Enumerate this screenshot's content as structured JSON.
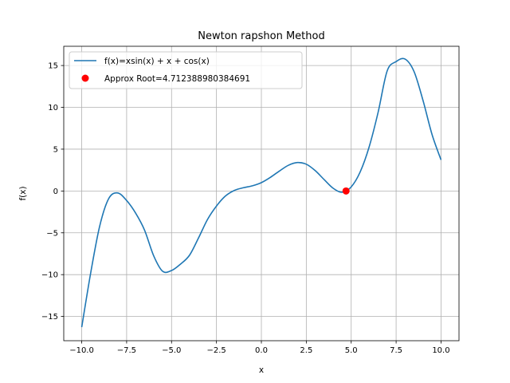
{
  "chart_data": {
    "type": "line",
    "title": "Newton rapshon Method",
    "xlabel": "x",
    "ylabel": "f(x)",
    "xlim": [
      -11.0,
      11.0
    ],
    "ylim": [
      -17.9,
      17.3
    ],
    "xticks": [
      -10.0,
      -7.5,
      -5.0,
      -2.5,
      0.0,
      2.5,
      5.0,
      7.5,
      10.0
    ],
    "xtick_labels": [
      "−10.0",
      "−7.5",
      "−5.0",
      "−2.5",
      "0.0",
      "2.5",
      "5.0",
      "7.5",
      "10.0"
    ],
    "yticks": [
      -15,
      -10,
      -5,
      0,
      5,
      10,
      15
    ],
    "ytick_labels": [
      "−15",
      "−10",
      "−5",
      "0",
      "5",
      "10",
      "15"
    ],
    "grid": true,
    "legend_position": "upper-left",
    "series": [
      {
        "name": "f(x)=xsin(x) + x + cos(x)",
        "kind": "line",
        "color": "#1f77b4",
        "x": [
          -10.0,
          -9.5,
          -9.0,
          -8.5,
          -8.0,
          -7.5,
          -7.0,
          -6.5,
          -6.0,
          -5.5,
          -5.0,
          -4.5,
          -4.0,
          -3.5,
          -3.0,
          -2.5,
          -2.0,
          -1.5,
          -1.0,
          -0.5,
          0.0,
          0.5,
          1.0,
          1.5,
          2.0,
          2.5,
          3.0,
          3.5,
          4.0,
          4.5,
          5.0,
          5.5,
          6.0,
          6.5,
          7.0,
          7.5,
          8.0,
          8.5,
          9.0,
          9.5,
          10.0
        ],
        "y": [
          -16.28,
          -9.79,
          -4.2,
          -0.92,
          -0.23,
          -1.14,
          -2.64,
          -4.69,
          -7.72,
          -9.59,
          -9.51,
          -8.74,
          -7.68,
          -5.62,
          -3.41,
          -1.8,
          -0.6,
          0.07,
          0.39,
          0.62,
          1.0,
          1.63,
          2.38,
          3.07,
          3.4,
          3.2,
          2.43,
          1.35,
          0.32,
          -0.15,
          0.49,
          2.28,
          5.28,
          9.43,
          14.34,
          15.47,
          15.77,
          14.27,
          10.8,
          6.75,
          3.72
        ]
      },
      {
        "name": "Approx Root=4.712388980384691",
        "kind": "scatter",
        "color": "#ff0000",
        "x": [
          4.712388980384691
        ],
        "y": [
          0.0
        ]
      }
    ]
  }
}
